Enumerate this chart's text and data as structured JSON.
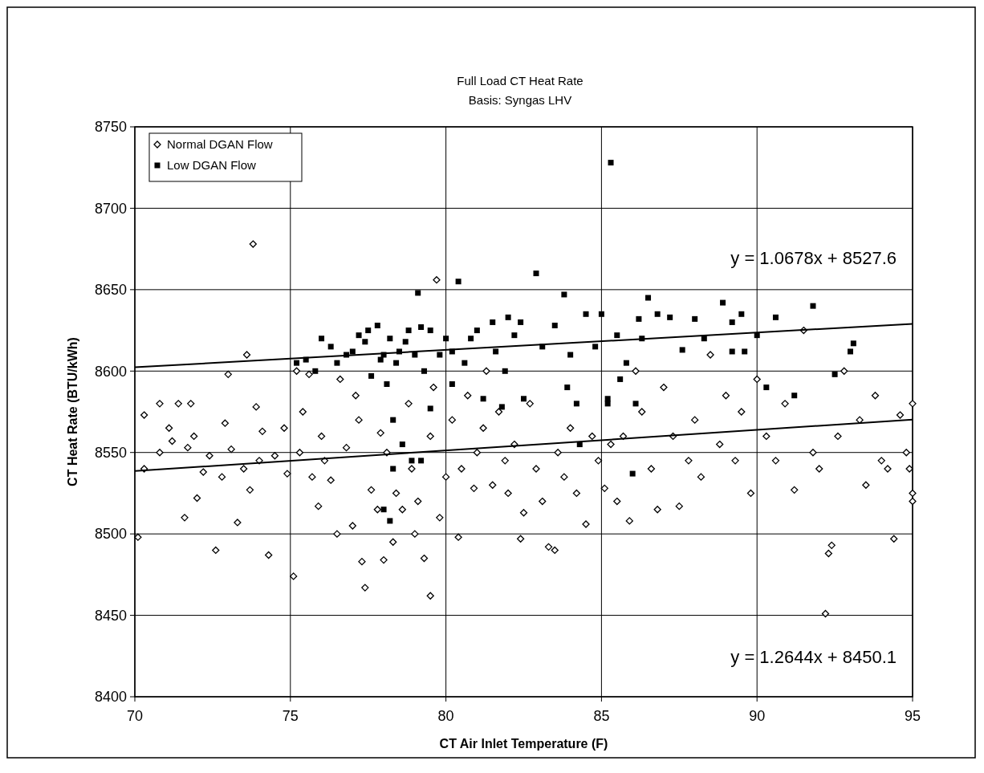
{
  "chart_data": {
    "type": "scatter",
    "title": "Full Load CT Heat Rate",
    "subtitle": "Basis: Syngas LHV",
    "xlabel": "CT Air Inlet Temperature (F)",
    "ylabel": "CT Heat Rate (BTU/kWh)",
    "xlim": [
      70,
      95
    ],
    "xticks": [
      70,
      75,
      80,
      85,
      90,
      95
    ],
    "ylim": [
      8400,
      8750
    ],
    "yticks": [
      8400,
      8450,
      8500,
      8550,
      8600,
      8650,
      8700,
      8750
    ],
    "grid": true,
    "legend": "top left",
    "annotations": [
      "y = 1.0678x + 8527.6",
      "y = 1.2644x + 8450.1"
    ],
    "series": [
      {
        "name": "Normal DGAN Flow",
        "color": "#000000",
        "marker": "diamond",
        "x": [
          70.1,
          70.3,
          70.3,
          70.8,
          70.8,
          71.1,
          71.2,
          71.4,
          71.6,
          71.7,
          71.8,
          71.9,
          72,
          72.2,
          72.4,
          72.6,
          72.8,
          72.9,
          73,
          73.1,
          73.3,
          73.5,
          73.6,
          73.7,
          73.9,
          74,
          74.1,
          73.8,
          74.3,
          74.5,
          74.8,
          74.9,
          75.1,
          75.2,
          75.3,
          75.4,
          75.6,
          75.7,
          75.9,
          76,
          76.1,
          76.3,
          76.5,
          76.6,
          76.8,
          77,
          77.1,
          77.2,
          77.3,
          77.4,
          77.6,
          77.8,
          77.9,
          78,
          78.1,
          78.3,
          78.4,
          78.6,
          78.8,
          78.9,
          79,
          79.1,
          79.3,
          79.5,
          79.6,
          79.5,
          79.8,
          80,
          80.2,
          79.7,
          80.4,
          80.5,
          80.7,
          80.9,
          81,
          81.2,
          81.3,
          81.5,
          81.7,
          81.9,
          82,
          82.2,
          82.4,
          82.5,
          82.7,
          82.9,
          83.1,
          83.3,
          83.5,
          83.6,
          83.8,
          84,
          84.2,
          84.5,
          84.7,
          84.9,
          85.1,
          85.3,
          85.5,
          85.7,
          85.9,
          86.1,
          86.3,
          86.6,
          86.8,
          87,
          87.3,
          87.5,
          87.8,
          88,
          88.2,
          88.5,
          88.8,
          89,
          89.3,
          89.5,
          89.8,
          90,
          90.3,
          90.6,
          90.9,
          91.2,
          91.5,
          91.8,
          92,
          92.3,
          92.4,
          92.6,
          92.8,
          92.2,
          93.3,
          93.5,
          93.8,
          94,
          94.2,
          94.4,
          94.6,
          94.8,
          95,
          95,
          95,
          94.9
        ],
        "values": [
          8498,
          8573,
          8540,
          8580,
          8550,
          8565,
          8557,
          8580,
          8510,
          8553,
          8580,
          8560,
          8522,
          8538,
          8548,
          8490,
          8535,
          8568,
          8598,
          8552,
          8507,
          8540,
          8610,
          8527,
          8578,
          8545,
          8563,
          8678,
          8487,
          8548,
          8565,
          8537,
          8474,
          8600,
          8550,
          8575,
          8598,
          8535,
          8517,
          8560,
          8545,
          8533,
          8500,
          8595,
          8553,
          8505,
          8585,
          8570,
          8483,
          8467,
          8527,
          8515,
          8562,
          8484,
          8550,
          8495,
          8525,
          8515,
          8580,
          8540,
          8500,
          8520,
          8485,
          8560,
          8590,
          8462,
          8510,
          8535,
          8570,
          8656,
          8498,
          8540,
          8585,
          8528,
          8550,
          8565,
          8600,
          8530,
          8575,
          8545,
          8525,
          8555,
          8497,
          8513,
          8580,
          8540,
          8520,
          8492,
          8490,
          8550,
          8535,
          8565,
          8525,
          8506,
          8560,
          8545,
          8528,
          8555,
          8520,
          8560,
          8508,
          8600,
          8575,
          8540,
          8515,
          8590,
          8560,
          8517,
          8545,
          8570,
          8535,
          8610,
          8555,
          8585,
          8545,
          8575,
          8525,
          8595,
          8560,
          8545,
          8580,
          8527,
          8625,
          8550,
          8540,
          8488,
          8493,
          8560,
          8600,
          8451,
          8570,
          8530,
          8585,
          8545,
          8540,
          8497,
          8573,
          8550,
          8525,
          8520,
          8580,
          8540
        ]
      },
      {
        "name": "Low DGAN Flow",
        "color": "#000000",
        "marker": "square",
        "x": [
          75.2,
          75.5,
          75.8,
          76,
          76.3,
          76.5,
          76.8,
          77,
          77.2,
          77.4,
          77.5,
          77.6,
          77.8,
          78,
          78.1,
          78.2,
          78.3,
          78.4,
          78.5,
          78.6,
          78.7,
          78.8,
          79,
          79.1,
          79.2,
          79.3,
          79.5,
          79.5,
          79.8,
          80,
          80.2,
          80.4,
          80.6,
          80.8,
          81,
          81.2,
          81.5,
          81.6,
          81.8,
          82,
          82.2,
          82.4,
          82.5,
          82.9,
          83.1,
          83.5,
          83.8,
          83.9,
          84,
          84.2,
          84.5,
          84.8,
          85,
          85.2,
          85.3,
          85.5,
          85.8,
          86.2,
          86.5,
          86.8,
          87.2,
          87.6,
          88,
          88.3,
          88.9,
          89.2,
          89.5,
          90,
          90.3,
          90.6,
          91.2,
          91.8,
          92.5,
          93,
          93.1,
          77.9,
          78.3,
          78.9,
          79.2,
          78,
          78.2,
          80.2,
          81.9,
          84.3,
          85.6,
          86,
          86.3,
          89.2,
          89.6,
          86.1,
          85.2
        ],
        "values": [
          8605,
          8607,
          8600,
          8620,
          8615,
          8605,
          8610,
          8612,
          8622,
          8618,
          8625,
          8597,
          8628,
          8610,
          8592,
          8620,
          8570,
          8605,
          8612,
          8555,
          8618,
          8625,
          8610,
          8648,
          8627,
          8600,
          8577,
          8625,
          8610,
          8620,
          8612,
          8655,
          8605,
          8620,
          8625,
          8583,
          8630,
          8612,
          8578,
          8633,
          8622,
          8630,
          8583,
          8660,
          8615,
          8628,
          8647,
          8590,
          8610,
          8580,
          8635,
          8615,
          8635,
          8583,
          8728,
          8622,
          8605,
          8632,
          8645,
          8635,
          8633,
          8613,
          8632,
          8620,
          8642,
          8630,
          8635,
          8622,
          8590,
          8633,
          8585,
          8640,
          8598,
          8612,
          8617,
          8607,
          8540,
          8545,
          8545,
          8515,
          8508,
          8592,
          8600,
          8555,
          8595,
          8537,
          8620,
          8612,
          8612,
          8580,
          8580
        ]
      },
      {
        "type": "line",
        "color": "#000000",
        "marker": "none",
        "x": [
          70,
          95
        ],
        "values": [
          8602.3,
          8629.0
        ]
      },
      {
        "type": "line",
        "color": "#000000",
        "marker": "none",
        "x": [
          70,
          95
        ],
        "values": [
          8538.6,
          8570.2
        ]
      }
    ]
  }
}
